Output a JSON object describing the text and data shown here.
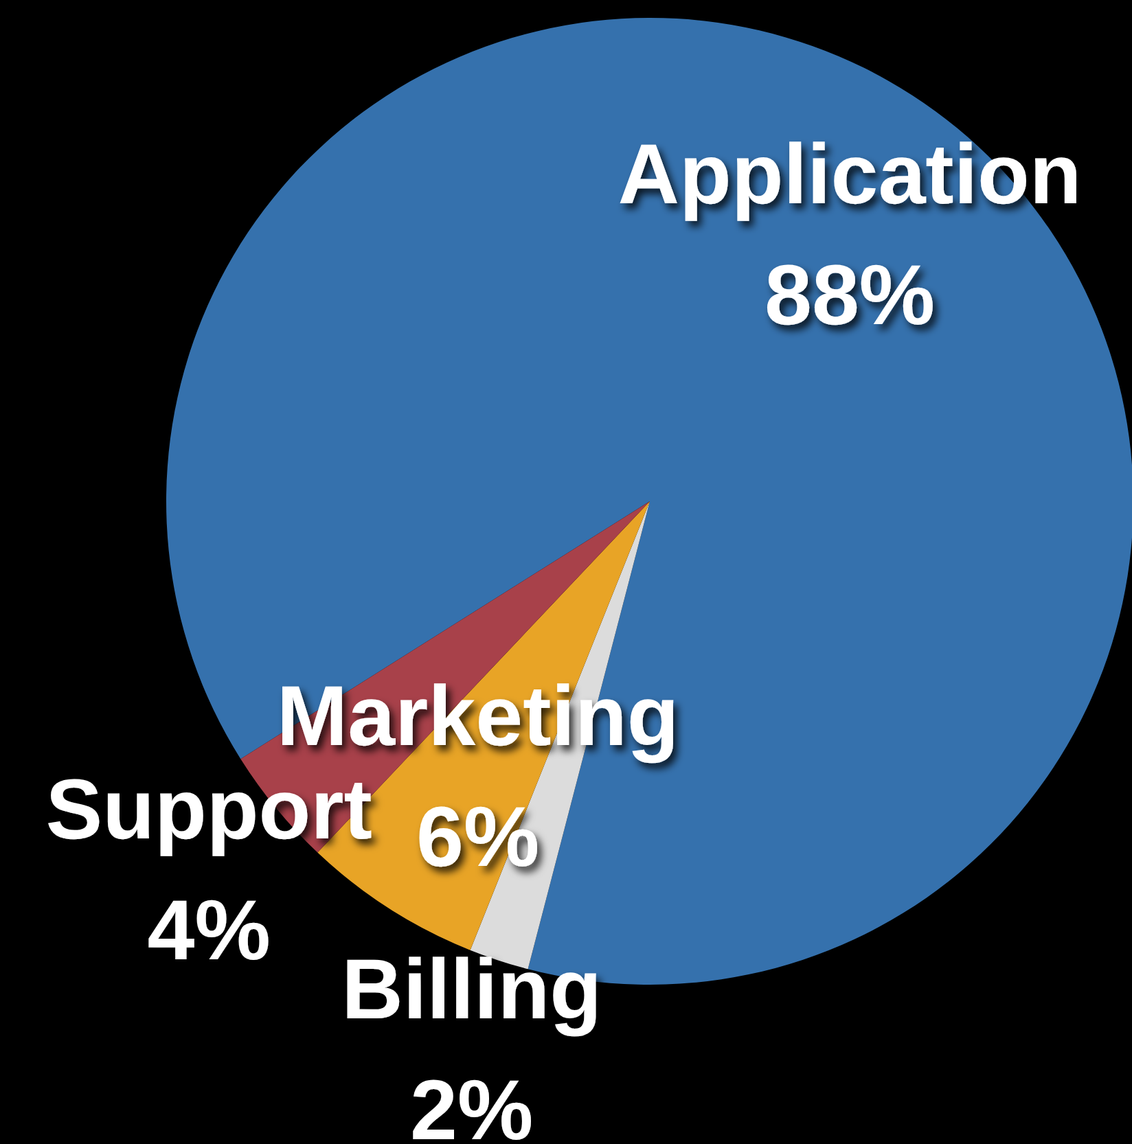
{
  "chart_data": {
    "type": "pie",
    "categories": [
      "Application",
      "Billing",
      "Marketing",
      "Support"
    ],
    "values": [
      88,
      2,
      6,
      4
    ],
    "value_labels": [
      "88%",
      "2%",
      "6%",
      "4%"
    ],
    "colors": [
      "#3571ad",
      "#dcdcdc",
      "#e8a426",
      "#a8414a"
    ]
  }
}
